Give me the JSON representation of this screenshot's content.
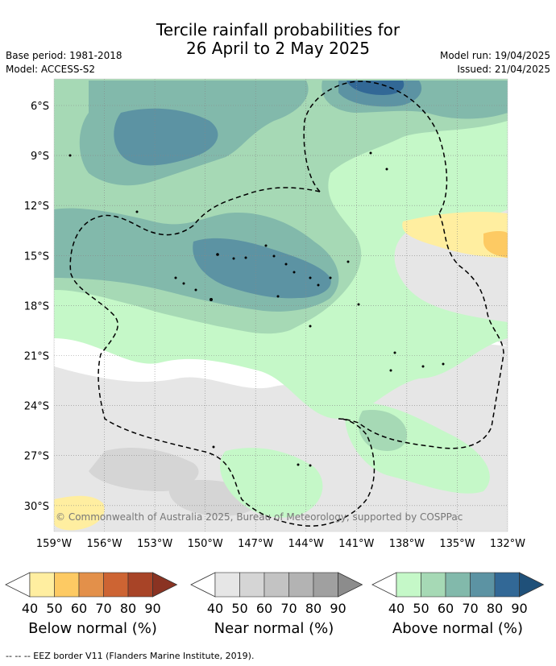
{
  "title": {
    "line1": "Tercile rainfall probabilities for",
    "line2": "26 April to 2 May 2025"
  },
  "meta": {
    "base_period": "Base period: 1981-2018",
    "model": "Model: ACCESS-S2",
    "model_run": "Model run: 19/04/2025",
    "issued": "Issued: 21/04/2025"
  },
  "map": {
    "lat_labels": [
      "6°S",
      "9°S",
      "12°S",
      "15°S",
      "18°S",
      "21°S",
      "24°S",
      "27°S",
      "30°S"
    ],
    "lon_labels": [
      "159°W",
      "156°W",
      "153°W",
      "150°W",
      "147°W",
      "144°W",
      "141°W",
      "138°W",
      "135°W",
      "132°W"
    ],
    "copyright": "© Commonwealth of Australia 2025, Bureau of Meteorology, supported by COSPPac",
    "colors": {
      "ocean_neutral": "#ffffff",
      "grid": "#888888"
    }
  },
  "legends": [
    {
      "label": "Below normal (%)",
      "ticks": [
        "40",
        "50",
        "60",
        "70",
        "80",
        "90"
      ],
      "colors": [
        "#ffeea0",
        "#fdca63",
        "#e3904a",
        "#cd6433",
        "#a84427",
        "#8a3322"
      ]
    },
    {
      "label": "Near normal (%)",
      "ticks": [
        "40",
        "50",
        "60",
        "70",
        "80",
        "90"
      ],
      "colors": [
        "#e6e6e6",
        "#d5d5d5",
        "#c3c3c3",
        "#b3b3b3",
        "#a0a0a0",
        "#8c8c8c"
      ]
    },
    {
      "label": "Above normal (%)",
      "ticks": [
        "40",
        "50",
        "60",
        "70",
        "80",
        "90"
      ],
      "colors": [
        "#c5f8c8",
        "#a6d9b5",
        "#82b9ab",
        "#5c93a3",
        "#326896",
        "#1f5079"
      ]
    }
  ],
  "footer": "-- -- -- EEZ border V11 (Flanders Marine Institute, 2019)."
}
